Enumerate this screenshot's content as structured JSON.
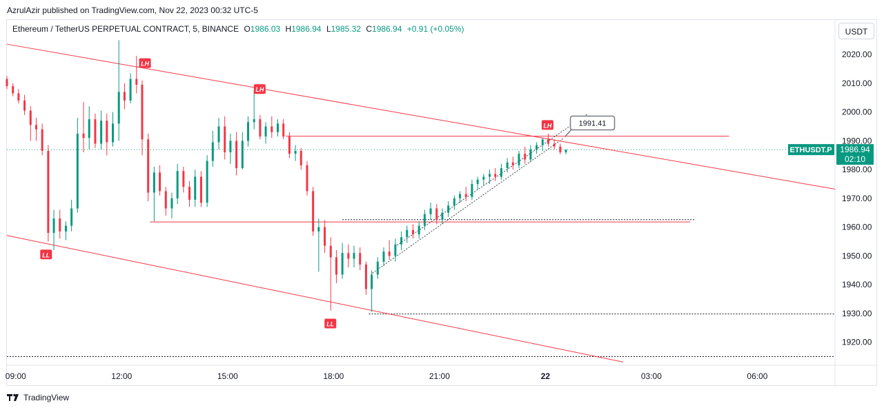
{
  "header": {
    "publish_line": "AzrulAzir published on TradingView.com, Nov 22, 2023 00:32 UTC-5"
  },
  "legend": {
    "symbol": "Ethereum / TetherUS PERPETUAL CONTRACT, 5, BINANCE",
    "open_label": "O",
    "open": "1986.03",
    "high_label": "H",
    "high": "1986.94",
    "low_label": "L",
    "low": "1985.32",
    "close_label": "C",
    "close": "1986.94",
    "change": "+0.91 (+0.05%)"
  },
  "currency_button": "USDT",
  "footer": {
    "brand": "TradingView"
  },
  "colors": {
    "up": "#089981",
    "down": "#f23645",
    "line": "#f23645",
    "accent": "#089981"
  },
  "chart_data": {
    "type": "candlestick",
    "timeframe_minutes": 5,
    "ylim": [
      1912,
      2032
    ],
    "y_ticks": [
      1920,
      1930,
      1940,
      1950,
      1960,
      1970,
      1980,
      1990,
      2000,
      2010,
      2020
    ],
    "x_tick_labels": [
      "09:00",
      "12:00",
      "15:00",
      "18:00",
      "21:00",
      "22",
      "03:00",
      "06:00"
    ],
    "x_tick_hours": [
      9,
      12,
      15,
      18,
      21,
      24,
      27,
      30
    ],
    "x_range_hours": [
      8.75,
      32.2
    ],
    "last_price": {
      "ticker": "ETHUSDT.P",
      "price": "1986.94",
      "countdown": "02:10",
      "value": 1986.94
    },
    "price_note": {
      "text": "1991.41",
      "value": 1991.41
    },
    "markers": [
      {
        "label": "LH",
        "hour": 12.65,
        "price": 2017,
        "kind": "high"
      },
      {
        "label": "LH",
        "hour": 15.9,
        "price": 2008,
        "kind": "high"
      },
      {
        "label": "LH",
        "hour": 24.05,
        "price": 1995.5,
        "kind": "high"
      },
      {
        "label": "LL",
        "hour": 9.85,
        "price": 1950.5,
        "kind": "low"
      },
      {
        "label": "LL",
        "hour": 17.9,
        "price": 1926.5,
        "kind": "low"
      }
    ],
    "trend_lines": [
      {
        "name": "upper channel",
        "from": [
          8.75,
          2023.6
        ],
        "to": [
          32.2,
          1973.2
        ]
      },
      {
        "name": "lower channel",
        "from": [
          8.75,
          1957.1
        ],
        "to": [
          26.2,
          1913.1
        ]
      },
      {
        "name": "resistance",
        "from": [
          16.65,
          1991.6
        ],
        "to": [
          29.2,
          1991.6
        ]
      },
      {
        "name": "support",
        "from": [
          12.8,
          1961.8
        ],
        "to": [
          28.1,
          1961.8
        ]
      }
    ],
    "dashed_levels": [
      {
        "value": 1929.8,
        "from": 19.0,
        "to": 32.2
      },
      {
        "value": 1962.6,
        "from": 18.25,
        "to": 28.25
      },
      {
        "value": 1915.0,
        "from": 8.75,
        "to": 32.2
      }
    ],
    "rising_channel": [
      {
        "from": [
          19.1,
          1944.0
        ],
        "to": [
          24.5,
          1990.8
        ]
      },
      {
        "from": [
          19.8,
          1953.7
        ],
        "to": [
          25.2,
          1999.4
        ]
      }
    ],
    "series": [
      {
        "kind": "ohlc",
        "candles": [
          {
            "t": 8.75,
            "o": 2011.5,
            "h": 2012.5,
            "l": 2008.0,
            "c": 2009.0
          },
          {
            "t": 8.92,
            "o": 2009.0,
            "h": 2010.0,
            "l": 2005.5,
            "c": 2006.5
          },
          {
            "t": 9.08,
            "o": 2006.5,
            "h": 2008.0,
            "l": 2003.0,
            "c": 2004.0
          },
          {
            "t": 9.25,
            "o": 2004.0,
            "h": 2006.0,
            "l": 1999.0,
            "c": 2000.5
          },
          {
            "t": 9.42,
            "o": 2000.5,
            "h": 2002.0,
            "l": 1990.0,
            "c": 1995.5
          },
          {
            "t": 9.58,
            "o": 1995.5,
            "h": 1998.0,
            "l": 1990.0,
            "c": 1994.0
          },
          {
            "t": 9.75,
            "o": 1994.0,
            "h": 1996.0,
            "l": 1985.0,
            "c": 1986.5
          },
          {
            "t": 9.92,
            "o": 1986.5,
            "h": 1988.5,
            "l": 1955.0,
            "c": 1958.0
          },
          {
            "t": 10.08,
            "o": 1958.0,
            "h": 1966.0,
            "l": 1952.0,
            "c": 1963.0
          },
          {
            "t": 10.25,
            "o": 1963.0,
            "h": 1966.0,
            "l": 1956.0,
            "c": 1958.5
          },
          {
            "t": 10.42,
            "o": 1958.5,
            "h": 1962.0,
            "l": 1955.5,
            "c": 1960.5
          },
          {
            "t": 10.58,
            "o": 1960.5,
            "h": 1969.5,
            "l": 1958.5,
            "c": 1966.5
          },
          {
            "t": 10.75,
            "o": 1966.5,
            "h": 1998.0,
            "l": 1965.0,
            "c": 1992.5
          },
          {
            "t": 10.92,
            "o": 1992.5,
            "h": 2003.5,
            "l": 1986.0,
            "c": 1991.0
          },
          {
            "t": 11.08,
            "o": 1991.0,
            "h": 2002.0,
            "l": 1987.0,
            "c": 1997.5
          },
          {
            "t": 11.25,
            "o": 1997.5,
            "h": 1999.5,
            "l": 1987.5,
            "c": 1989.0
          },
          {
            "t": 11.42,
            "o": 1989.0,
            "h": 2000.5,
            "l": 1987.0,
            "c": 1997.0
          },
          {
            "t": 11.58,
            "o": 1997.0,
            "h": 1999.5,
            "l": 1985.0,
            "c": 1989.5
          },
          {
            "t": 11.75,
            "o": 1989.5,
            "h": 2000.0,
            "l": 1988.0,
            "c": 1996.0
          },
          {
            "t": 11.92,
            "o": 1996.0,
            "h": 2025.0,
            "l": 1990.0,
            "c": 2007.0
          },
          {
            "t": 12.08,
            "o": 2007.0,
            "h": 2010.0,
            "l": 2001.0,
            "c": 2004.0
          },
          {
            "t": 12.25,
            "o": 2004.0,
            "h": 2013.5,
            "l": 2003.0,
            "c": 2011.5
          },
          {
            "t": 12.42,
            "o": 2011.5,
            "h": 2019.5,
            "l": 2006.5,
            "c": 2009.5
          },
          {
            "t": 12.58,
            "o": 2009.5,
            "h": 2011.0,
            "l": 1985.0,
            "c": 1990.5
          },
          {
            "t": 12.75,
            "o": 1990.5,
            "h": 1992.5,
            "l": 1969.0,
            "c": 1972.0
          },
          {
            "t": 12.92,
            "o": 1972.0,
            "h": 1981.0,
            "l": 1962.0,
            "c": 1979.0
          },
          {
            "t": 13.08,
            "o": 1979.0,
            "h": 1981.5,
            "l": 1971.0,
            "c": 1972.5
          },
          {
            "t": 13.25,
            "o": 1972.5,
            "h": 1974.0,
            "l": 1964.0,
            "c": 1966.5
          },
          {
            "t": 13.42,
            "o": 1966.5,
            "h": 1972.0,
            "l": 1963.0,
            "c": 1970.0
          },
          {
            "t": 13.58,
            "o": 1970.0,
            "h": 1982.0,
            "l": 1968.0,
            "c": 1979.5
          },
          {
            "t": 13.75,
            "o": 1979.5,
            "h": 1981.0,
            "l": 1972.0,
            "c": 1974.0
          },
          {
            "t": 13.92,
            "o": 1974.0,
            "h": 1976.0,
            "l": 1967.0,
            "c": 1969.5
          },
          {
            "t": 14.08,
            "o": 1969.5,
            "h": 1980.0,
            "l": 1967.0,
            "c": 1977.5
          },
          {
            "t": 14.25,
            "o": 1977.5,
            "h": 1979.5,
            "l": 1967.0,
            "c": 1968.5
          },
          {
            "t": 14.42,
            "o": 1968.5,
            "h": 1985.0,
            "l": 1967.0,
            "c": 1983.0
          },
          {
            "t": 14.58,
            "o": 1983.0,
            "h": 1993.5,
            "l": 1981.0,
            "c": 1989.5
          },
          {
            "t": 14.75,
            "o": 1989.5,
            "h": 1998.0,
            "l": 1987.0,
            "c": 1995.0
          },
          {
            "t": 14.92,
            "o": 1995.0,
            "h": 1998.5,
            "l": 1983.5,
            "c": 1986.0
          },
          {
            "t": 15.08,
            "o": 1986.0,
            "h": 1992.5,
            "l": 1982.0,
            "c": 1990.0
          },
          {
            "t": 15.25,
            "o": 1990.0,
            "h": 1993.0,
            "l": 1978.0,
            "c": 1980.5
          },
          {
            "t": 15.42,
            "o": 1980.5,
            "h": 1993.0,
            "l": 1980.0,
            "c": 1990.0
          },
          {
            "t": 15.58,
            "o": 1990.0,
            "h": 1998.5,
            "l": 1988.0,
            "c": 1996.5
          },
          {
            "t": 15.75,
            "o": 1996.5,
            "h": 2007.5,
            "l": 1994.0,
            "c": 1997.5
          },
          {
            "t": 15.92,
            "o": 1997.5,
            "h": 1999.0,
            "l": 1990.5,
            "c": 1991.5
          },
          {
            "t": 16.08,
            "o": 1991.5,
            "h": 1996.5,
            "l": 1989.0,
            "c": 1995.0
          },
          {
            "t": 16.25,
            "o": 1995.0,
            "h": 1998.5,
            "l": 1991.0,
            "c": 1993.0
          },
          {
            "t": 16.42,
            "o": 1993.0,
            "h": 1997.5,
            "l": 1991.5,
            "c": 1996.0
          },
          {
            "t": 16.58,
            "o": 1996.0,
            "h": 1997.5,
            "l": 1990.5,
            "c": 1991.5
          },
          {
            "t": 16.75,
            "o": 1991.5,
            "h": 1993.0,
            "l": 1984.0,
            "c": 1985.5
          },
          {
            "t": 16.92,
            "o": 1985.5,
            "h": 1988.5,
            "l": 1983.0,
            "c": 1986.5
          },
          {
            "t": 17.08,
            "o": 1986.5,
            "h": 1987.5,
            "l": 1980.0,
            "c": 1981.5
          },
          {
            "t": 17.25,
            "o": 1981.5,
            "h": 1983.0,
            "l": 1971.0,
            "c": 1972.5
          },
          {
            "t": 17.42,
            "o": 1972.5,
            "h": 1974.0,
            "l": 1957.0,
            "c": 1958.5
          },
          {
            "t": 17.58,
            "o": 1958.5,
            "h": 1963.0,
            "l": 1944.5,
            "c": 1960.0
          },
          {
            "t": 17.75,
            "o": 1960.0,
            "h": 1962.5,
            "l": 1951.0,
            "c": 1953.5
          },
          {
            "t": 17.92,
            "o": 1953.5,
            "h": 1956.5,
            "l": 1931.0,
            "c": 1949.5
          },
          {
            "t": 18.08,
            "o": 1949.5,
            "h": 1952.0,
            "l": 1940.5,
            "c": 1943.5
          },
          {
            "t": 18.25,
            "o": 1943.5,
            "h": 1954.5,
            "l": 1942.0,
            "c": 1951.0
          },
          {
            "t": 18.42,
            "o": 1951.0,
            "h": 1954.0,
            "l": 1946.0,
            "c": 1949.0
          },
          {
            "t": 18.58,
            "o": 1949.0,
            "h": 1953.5,
            "l": 1946.0,
            "c": 1951.0
          },
          {
            "t": 18.75,
            "o": 1951.0,
            "h": 1953.0,
            "l": 1945.0,
            "c": 1947.0
          },
          {
            "t": 18.92,
            "o": 1947.0,
            "h": 1948.0,
            "l": 1936.5,
            "c": 1938.5
          },
          {
            "t": 19.08,
            "o": 1938.5,
            "h": 1945.0,
            "l": 1930.5,
            "c": 1943.5
          },
          {
            "t": 19.25,
            "o": 1943.5,
            "h": 1949.5,
            "l": 1942.0,
            "c": 1948.0
          },
          {
            "t": 19.42,
            "o": 1948.0,
            "h": 1953.0,
            "l": 1946.5,
            "c": 1951.5
          },
          {
            "t": 19.58,
            "o": 1951.5,
            "h": 1955.5,
            "l": 1948.5,
            "c": 1950.0
          },
          {
            "t": 19.75,
            "o": 1950.0,
            "h": 1956.0,
            "l": 1948.0,
            "c": 1954.0
          },
          {
            "t": 19.92,
            "o": 1954.0,
            "h": 1958.5,
            "l": 1952.0,
            "c": 1956.5
          },
          {
            "t": 20.08,
            "o": 1956.5,
            "h": 1960.5,
            "l": 1954.5,
            "c": 1959.0
          },
          {
            "t": 20.25,
            "o": 1959.0,
            "h": 1961.0,
            "l": 1956.0,
            "c": 1957.5
          },
          {
            "t": 20.42,
            "o": 1957.5,
            "h": 1962.0,
            "l": 1956.0,
            "c": 1960.5
          },
          {
            "t": 20.58,
            "o": 1960.5,
            "h": 1966.0,
            "l": 1959.0,
            "c": 1964.5
          },
          {
            "t": 20.75,
            "o": 1964.5,
            "h": 1968.5,
            "l": 1962.5,
            "c": 1966.5
          },
          {
            "t": 20.92,
            "o": 1966.5,
            "h": 1968.0,
            "l": 1961.0,
            "c": 1962.5
          },
          {
            "t": 21.08,
            "o": 1962.5,
            "h": 1966.5,
            "l": 1961.0,
            "c": 1965.0
          },
          {
            "t": 21.25,
            "o": 1965.0,
            "h": 1969.0,
            "l": 1963.5,
            "c": 1967.5
          },
          {
            "t": 21.42,
            "o": 1967.5,
            "h": 1971.0,
            "l": 1966.0,
            "c": 1970.0
          },
          {
            "t": 21.58,
            "o": 1970.0,
            "h": 1972.5,
            "l": 1968.5,
            "c": 1971.5
          },
          {
            "t": 21.75,
            "o": 1971.5,
            "h": 1974.0,
            "l": 1969.0,
            "c": 1970.5
          },
          {
            "t": 21.92,
            "o": 1970.5,
            "h": 1976.5,
            "l": 1969.5,
            "c": 1975.0
          },
          {
            "t": 22.08,
            "o": 1975.0,
            "h": 1977.5,
            "l": 1973.0,
            "c": 1976.5
          },
          {
            "t": 22.25,
            "o": 1976.5,
            "h": 1978.5,
            "l": 1974.5,
            "c": 1977.5
          },
          {
            "t": 22.42,
            "o": 1977.5,
            "h": 1980.0,
            "l": 1975.0,
            "c": 1978.5
          },
          {
            "t": 22.58,
            "o": 1978.5,
            "h": 1980.5,
            "l": 1976.0,
            "c": 1977.5
          },
          {
            "t": 22.75,
            "o": 1977.5,
            "h": 1982.0,
            "l": 1976.5,
            "c": 1980.5
          },
          {
            "t": 22.92,
            "o": 1980.5,
            "h": 1984.0,
            "l": 1979.0,
            "c": 1982.5
          },
          {
            "t": 23.08,
            "o": 1982.5,
            "h": 1984.5,
            "l": 1980.0,
            "c": 1981.5
          },
          {
            "t": 23.25,
            "o": 1981.5,
            "h": 1986.5,
            "l": 1980.5,
            "c": 1985.5
          },
          {
            "t": 23.42,
            "o": 1985.5,
            "h": 1988.0,
            "l": 1982.0,
            "c": 1983.5
          },
          {
            "t": 23.58,
            "o": 1983.5,
            "h": 1988.5,
            "l": 1982.5,
            "c": 1987.0
          },
          {
            "t": 23.75,
            "o": 1987.0,
            "h": 1989.5,
            "l": 1985.5,
            "c": 1988.5
          },
          {
            "t": 23.92,
            "o": 1988.5,
            "h": 1991.0,
            "l": 1986.5,
            "c": 1990.5
          },
          {
            "t": 24.08,
            "o": 1990.5,
            "h": 1992.5,
            "l": 1988.0,
            "c": 1989.0
          },
          {
            "t": 24.25,
            "o": 1989.0,
            "h": 1990.5,
            "l": 1987.0,
            "c": 1988.0
          },
          {
            "t": 24.42,
            "o": 1988.0,
            "h": 1989.0,
            "l": 1985.32,
            "c": 1986.03
          },
          {
            "t": 24.58,
            "o": 1986.03,
            "h": 1986.94,
            "l": 1985.32,
            "c": 1986.94
          }
        ]
      }
    ]
  }
}
